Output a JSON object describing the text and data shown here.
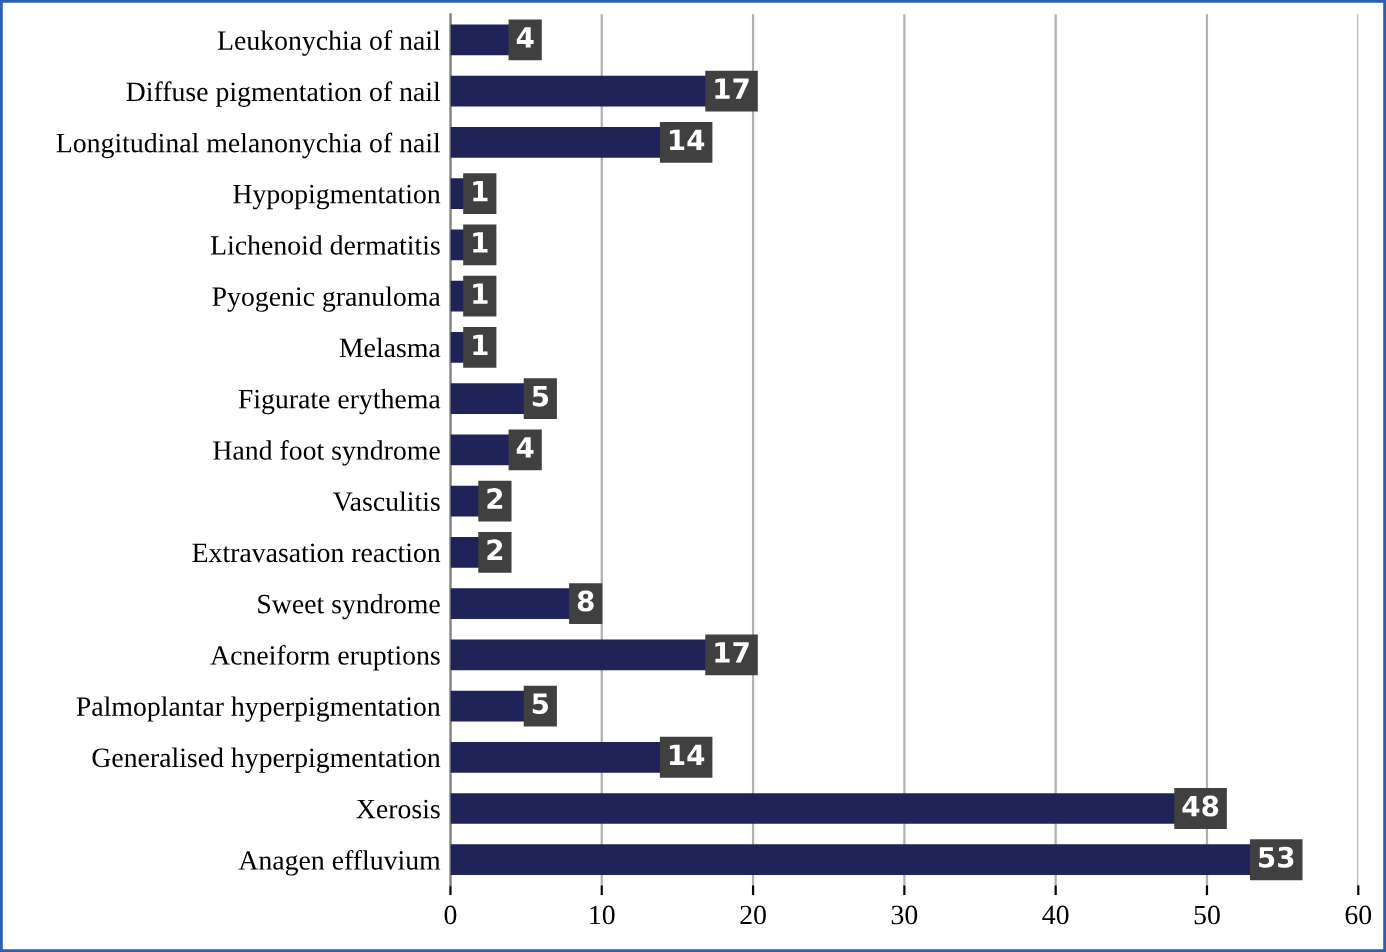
{
  "chart_data": {
    "type": "bar",
    "orientation": "horizontal",
    "categories": [
      "Leukonychia of nail",
      "Diffuse pigmentation of nail",
      "Longitudinal melanonychia of nail",
      "Hypopigmentation",
      "Lichenoid dermatitis",
      "Pyogenic granuloma",
      "Melasma",
      "Figurate erythema",
      "Hand foot syndrome",
      "Vasculitis",
      "Extravasation reaction",
      "Sweet syndrome",
      "Acneiform eruptions",
      "Palmoplantar hyperpigmentation",
      "Generalised hyperpigmentation",
      "Xerosis",
      "Anagen effluvium"
    ],
    "values": [
      4,
      17,
      14,
      1,
      1,
      1,
      1,
      5,
      4,
      2,
      2,
      8,
      17,
      5,
      14,
      48,
      53
    ],
    "color": "#1f2358",
    "xlim": [
      0,
      60
    ],
    "xticks": [
      0,
      10,
      20,
      30,
      40,
      50,
      60
    ],
    "grid": "x",
    "data_labels": true
  }
}
